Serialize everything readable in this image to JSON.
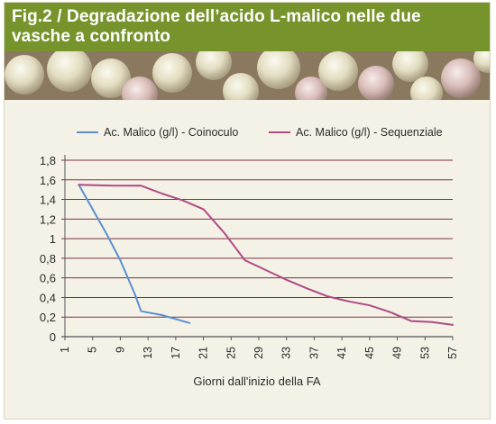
{
  "header": {
    "fig_label": "Fig.2",
    "title": "/ Degradazione dell’acido L-malico nelle due vasche a confronto"
  },
  "colors": {
    "header_bg": "#77932c",
    "panel_bg": "#f4f2e6",
    "gridline": "#7b2f47",
    "series_coinoculo": "#5b8fd0",
    "series_sequenziale": "#b04a86"
  },
  "chart_data": {
    "type": "line",
    "title": "",
    "xlabel": "Giorni dall'inizio della FA",
    "ylabel": "",
    "ylim": [
      0,
      1.8
    ],
    "xlim": [
      1,
      57
    ],
    "x_ticks": [
      1,
      5,
      9,
      13,
      17,
      21,
      25,
      29,
      33,
      37,
      41,
      45,
      49,
      53,
      57
    ],
    "y_ticks": [
      0,
      0.2,
      0.4,
      0.6,
      0.8,
      1,
      1.2,
      1.4,
      1.6,
      1.8
    ],
    "y_tick_labels": [
      "0",
      "0,2",
      "0,4",
      "0,6",
      "0,8",
      "1",
      "1,2",
      "1,4",
      "1,6",
      "1,8"
    ],
    "grid": true,
    "legend_position": "top",
    "series": [
      {
        "name": "Ac. Malico (g/l) - Coinoculo",
        "color": "#5b8fd0",
        "x": [
          3,
          5,
          7,
          9,
          11,
          12,
          15,
          17,
          19
        ],
        "y": [
          1.55,
          1.3,
          1.05,
          0.78,
          0.45,
          0.26,
          0.22,
          0.18,
          0.14
        ]
      },
      {
        "name": "Ac. Malico (g/l) - Sequenziale",
        "color": "#b04a86",
        "x": [
          3,
          8,
          12,
          15,
          18,
          21,
          24,
          27,
          30,
          33,
          36,
          39,
          42,
          45,
          48,
          51,
          54,
          57
        ],
        "y": [
          1.55,
          1.54,
          1.54,
          1.46,
          1.39,
          1.3,
          1.06,
          0.78,
          0.68,
          0.58,
          0.49,
          0.41,
          0.36,
          0.32,
          0.25,
          0.16,
          0.15,
          0.12
        ]
      }
    ]
  }
}
